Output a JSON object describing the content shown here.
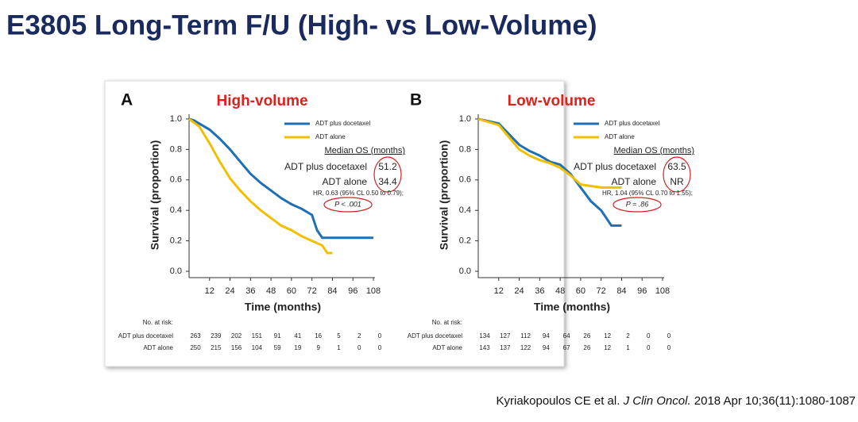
{
  "title": "E3805 Long-Term F/U (High- vs Low-Volume)",
  "citation": {
    "authors": "Kyriakopoulos  CE et al.",
    "journal": "J Clin Oncol.",
    "details": "2018 Apr 10;36(11):1080-1087"
  },
  "chart_data": [
    {
      "type": "line",
      "panel": "A",
      "title": "High-volume",
      "x_label": "Time (months)",
      "y_label": "Survival (proportion)",
      "xlim": [
        0,
        108
      ],
      "xticks": [
        12,
        24,
        36,
        48,
        60,
        72,
        84,
        96,
        108
      ],
      "ylim": [
        0,
        1
      ],
      "yticks": [
        {
          "value": 0,
          "label": "0.0"
        },
        0.2,
        0.4,
        0.6,
        0.8,
        {
          "value": 1,
          "label": "1.0"
        }
      ],
      "series": [
        {
          "name": "ADT plus docetaxel",
          "color": "#1f6fb5",
          "x": [
            0,
            3,
            6,
            12,
            18,
            24,
            30,
            36,
            42,
            48,
            54,
            60,
            66,
            72,
            75,
            78,
            84,
            108
          ],
          "values": [
            1.0,
            0.99,
            0.97,
            0.93,
            0.87,
            0.8,
            0.72,
            0.64,
            0.58,
            0.53,
            0.48,
            0.44,
            0.41,
            0.37,
            0.27,
            0.22,
            0.22,
            0.22
          ]
        },
        {
          "name": "ADT alone",
          "color": "#f0c000",
          "x": [
            0,
            6,
            12,
            18,
            24,
            30,
            36,
            42,
            48,
            54,
            60,
            66,
            72,
            78,
            81,
            84
          ],
          "values": [
            1.0,
            0.95,
            0.84,
            0.72,
            0.61,
            0.53,
            0.46,
            0.4,
            0.35,
            0.3,
            0.27,
            0.23,
            0.2,
            0.17,
            0.12,
            0.12
          ]
        }
      ],
      "median_os": {
        "header": "Median OS (months)",
        "rows": [
          {
            "name": "ADT plus docetaxel",
            "value": 51.2
          },
          {
            "name": "ADT alone",
            "value": 34.4
          }
        ],
        "hr": "HR, 0.63 (95% CL 0.50 to 0.79);",
        "p": "P < .001"
      },
      "risk_table": {
        "label": "No. at risk:",
        "x": [
          0,
          12,
          24,
          36,
          48,
          60,
          72,
          84,
          96,
          108
        ],
        "rows": [
          {
            "name": "ADT plus docetaxel",
            "counts": [
              263,
              239,
              202,
              151,
              91,
              41,
              16,
              5,
              2,
              0
            ]
          },
          {
            "name": "ADT alone",
            "counts": [
              250,
              215,
              156,
              104,
              59,
              19,
              9,
              1,
              0,
              0
            ]
          }
        ]
      }
    },
    {
      "type": "line",
      "panel": "B",
      "title": "Low-volume",
      "x_label": "Time (months)",
      "y_label": "Survival (proportion)",
      "xlim": [
        0,
        108
      ],
      "xticks": [
        12,
        24,
        36,
        48,
        60,
        72,
        84,
        96,
        108
      ],
      "ylim": [
        0,
        1
      ],
      "yticks": [
        {
          "value": 0,
          "label": "0.0"
        },
        0.2,
        0.4,
        0.6,
        0.8,
        {
          "value": 1,
          "label": "1.0"
        }
      ],
      "series": [
        {
          "name": "ADT plus docetaxel",
          "color": "#1f6fb5",
          "x": [
            0,
            12,
            18,
            24,
            30,
            36,
            42,
            48,
            54,
            60,
            66,
            72,
            78,
            84
          ],
          "values": [
            1.0,
            0.97,
            0.9,
            0.83,
            0.79,
            0.76,
            0.72,
            0.7,
            0.64,
            0.55,
            0.46,
            0.4,
            0.3,
            0.3
          ]
        },
        {
          "name": "ADT alone",
          "color": "#f0c000",
          "x": [
            0,
            12,
            18,
            24,
            30,
            36,
            42,
            48,
            54,
            60,
            66,
            72,
            84
          ],
          "values": [
            1.0,
            0.96,
            0.88,
            0.8,
            0.76,
            0.73,
            0.71,
            0.68,
            0.63,
            0.57,
            0.56,
            0.55,
            0.55
          ]
        }
      ],
      "median_os": {
        "header": "Median OS (months)",
        "rows": [
          {
            "name": "ADT plus docetaxel",
            "value": 63.5
          },
          {
            "name": "ADT alone",
            "value": "NR"
          }
        ],
        "hr": "HR, 1.04 (95% CL 0.70 to 1.55);",
        "p": "P = .86"
      },
      "risk_table": {
        "label": "No. at risk:",
        "x": [
          0,
          12,
          24,
          36,
          48,
          60,
          72,
          84,
          96,
          108
        ],
        "rows": [
          {
            "name": "ADT plus docetaxel",
            "counts": [
              134,
              127,
              112,
              94,
              64,
              26,
              12,
              2,
              0,
              0
            ]
          },
          {
            "name": "ADT alone",
            "counts": [
              143,
              137,
              122,
              94,
              67,
              26,
              12,
              1,
              0,
              0
            ]
          }
        ]
      }
    }
  ]
}
